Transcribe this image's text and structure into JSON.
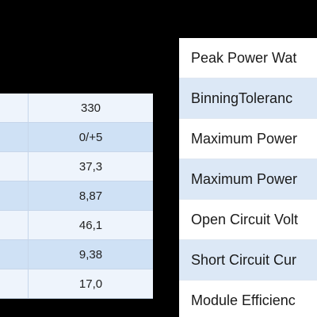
{
  "values_table": {
    "rows": [
      "330",
      "0/+5",
      "37,3",
      "8,87",
      "46,1",
      "9,38",
      "17,0"
    ]
  },
  "labels_panel": {
    "rows": [
      "Peak Power Wat",
      "BinningToleranc",
      "Maximum Power",
      "Maximum Power",
      "Open Circuit Volt",
      "Short Circuit Cur",
      "Module Efficienc"
    ]
  }
}
